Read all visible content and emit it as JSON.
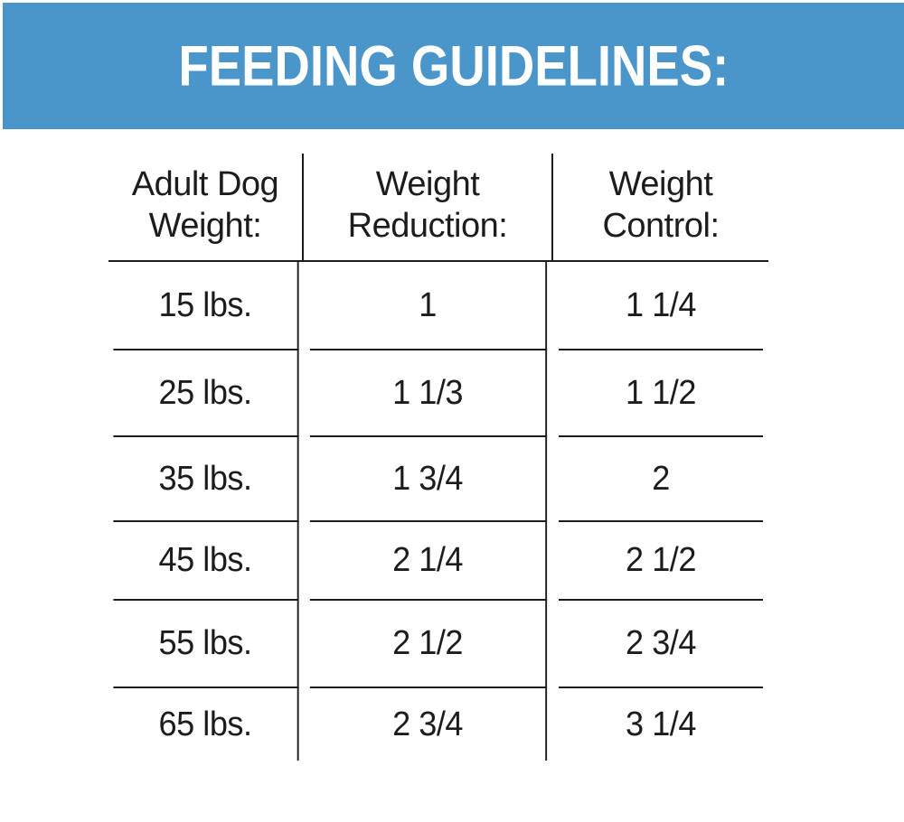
{
  "banner": {
    "bg_color": "#4a95c9",
    "text_color": "#ffffff"
  },
  "chart_data": {
    "type": "table",
    "title": "FEEDING GUIDELINES:",
    "columns": [
      "Adult Dog Weight:",
      "Weight Reduction:",
      "Weight Control:"
    ],
    "rows": [
      [
        "15 lbs.",
        "1",
        "1 1/4"
      ],
      [
        "25 lbs.",
        "1 1/3",
        "1 1/2"
      ],
      [
        "35 lbs.",
        "1 3/4",
        "2"
      ],
      [
        "45 lbs.",
        "2 1/4",
        "2 1/2"
      ],
      [
        "55 lbs.",
        "2 1/2",
        "2 3/4"
      ],
      [
        "65 lbs.",
        "2 3/4",
        "3 1/4"
      ]
    ],
    "layout": {
      "grid": "horizontal rules between rows, vertical rules between columns, no outer border",
      "line_color": "#1c1c1c",
      "text_color": "#1c1c1c"
    }
  }
}
